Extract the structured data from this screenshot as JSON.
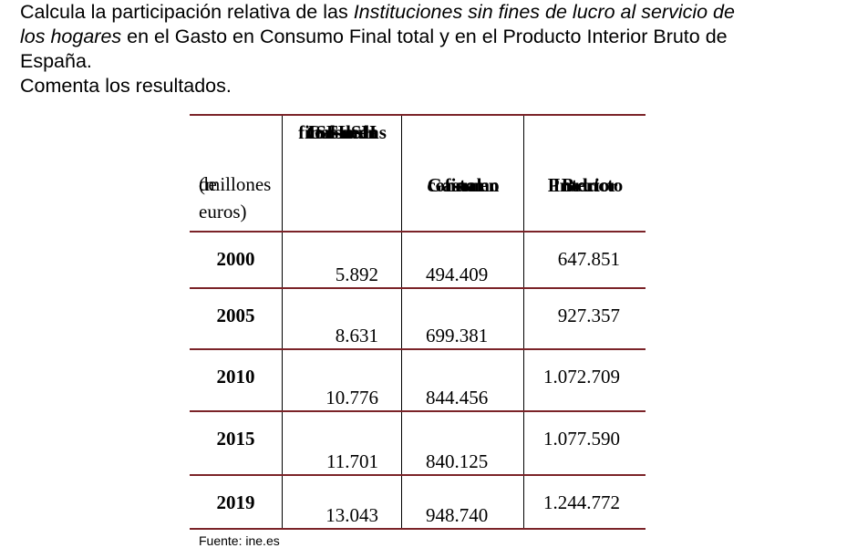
{
  "intro": {
    "line1_before": "Calcula la participación relativa de las ",
    "italic_term_line1": "Instituciones sin fines de lucro al servicio de",
    "italic_term_line2": "los hogares",
    "line2_after": " en el Gasto en Consumo Final total y en el Producto Interior Bruto de",
    "line3": "España.",
    "line4": "Comenta los resultados."
  },
  "table": {
    "units_label_line1": "(millones",
    "units_label_line2": "de euros)",
    "columns": [
      {
        "line1": "Gasto en",
        "line2": "consumo",
        "line3": "final de las",
        "line4": "ISFLSH"
      },
      {
        "line1": "Gasto en",
        "line2": "consumo",
        "line3": "final"
      },
      {
        "line1": "Producto",
        "line2": "Interior",
        "line3": "Bruto"
      }
    ],
    "rows": [
      {
        "year": "2000",
        "isflsh": "5.892",
        "gasto": "494.409",
        "pib": "647.851"
      },
      {
        "year": "2005",
        "isflsh": "8.631",
        "gasto": "699.381",
        "pib": "927.357"
      },
      {
        "year": "2010",
        "isflsh": "10.776",
        "gasto": "844.456",
        "pib": "1.072.709"
      },
      {
        "year": "2015",
        "isflsh": "11.701",
        "gasto": "840.125",
        "pib": "1.077.590"
      },
      {
        "year": "2019",
        "isflsh": "13.043",
        "gasto": "948.740",
        "pib": "1.244.772"
      }
    ]
  },
  "source": "Fuente: ine.es",
  "colors": {
    "table_rule": "#7b2328"
  }
}
